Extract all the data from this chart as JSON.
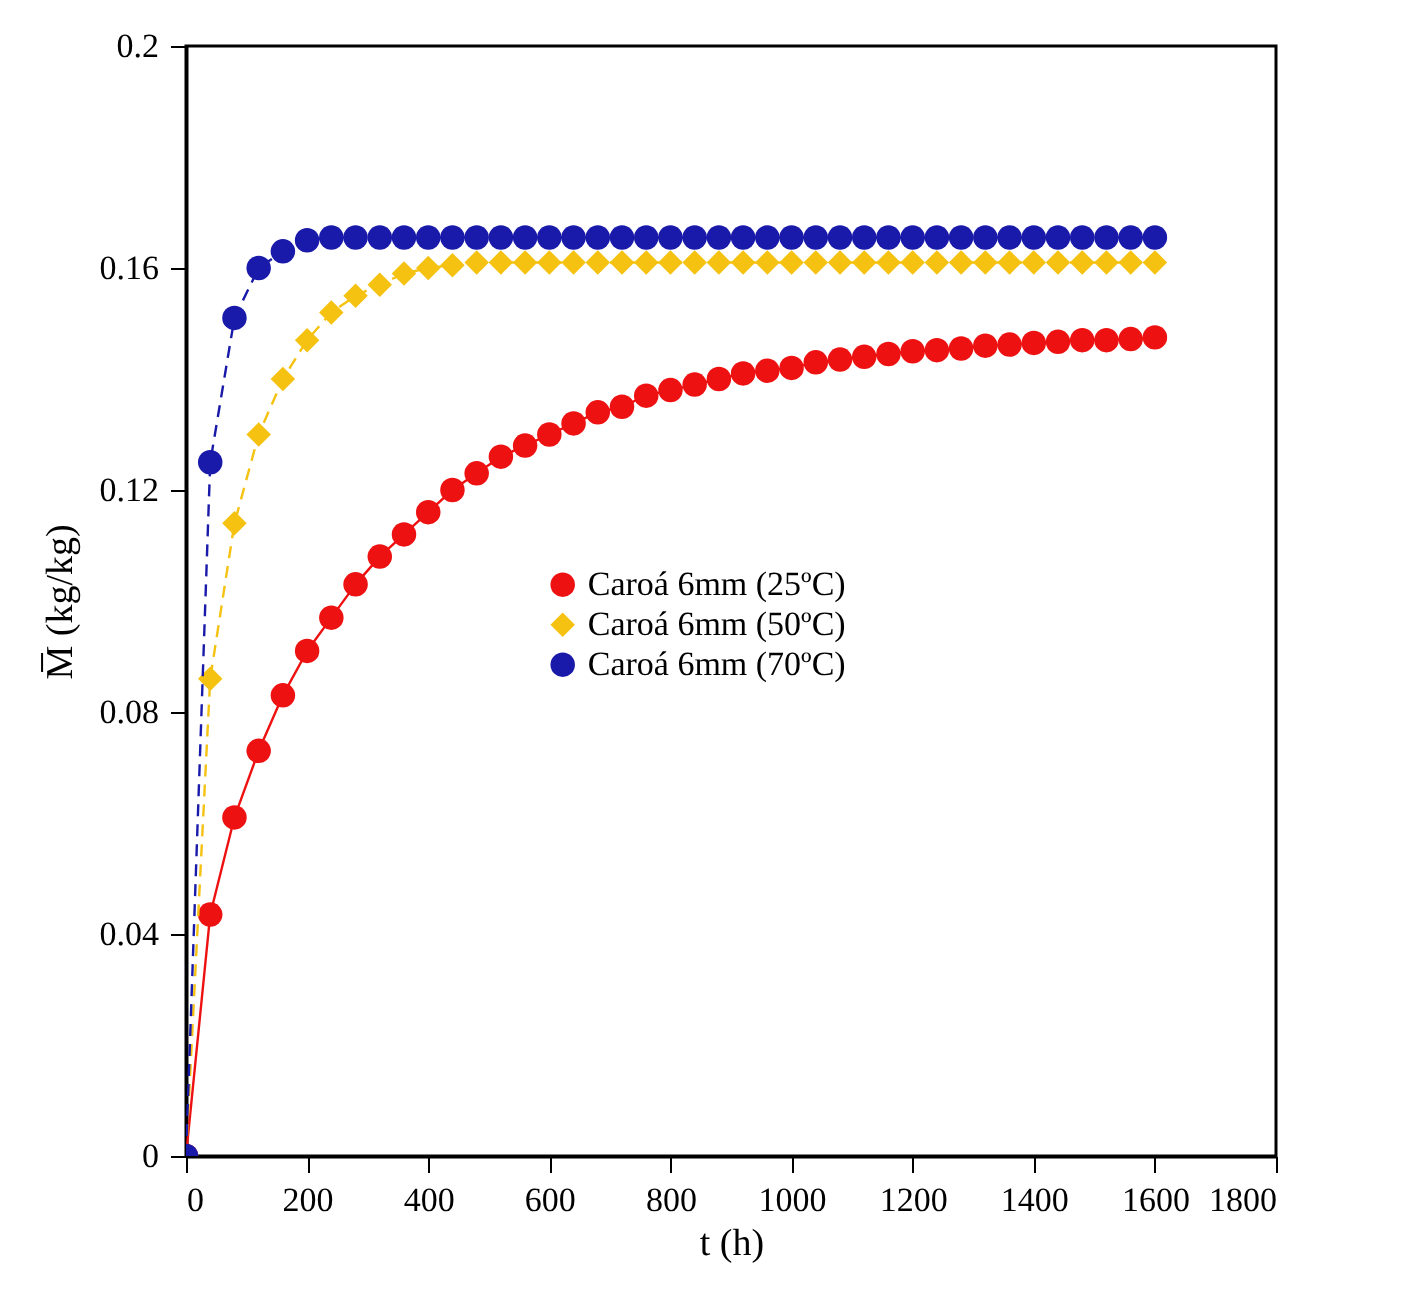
{
  "chart_data": {
    "type": "line",
    "xlabel": "t (h)",
    "ylabel": "M̅ (kg/kg)",
    "x": [
      0,
      40,
      80,
      120,
      160,
      200,
      240,
      280,
      320,
      360,
      400,
      440,
      480,
      520,
      560,
      600,
      640,
      680,
      720,
      760,
      800,
      840,
      880,
      920,
      960,
      1000,
      1040,
      1080,
      1120,
      1160,
      1200,
      1240,
      1280,
      1320,
      1360,
      1400,
      1440,
      1480,
      1520,
      1560,
      1600
    ],
    "series": [
      {
        "name": "Caroá 6mm (25ºC)",
        "color": "#ee1111",
        "marker": "circle",
        "line_style": "solid",
        "values": [
          0,
          0.0435,
          0.061,
          0.073,
          0.083,
          0.091,
          0.097,
          0.103,
          0.108,
          0.112,
          0.116,
          0.12,
          0.123,
          0.126,
          0.128,
          0.13,
          0.132,
          0.134,
          0.135,
          0.137,
          0.138,
          0.139,
          0.14,
          0.141,
          0.1415,
          0.142,
          0.143,
          0.1435,
          0.144,
          0.1445,
          0.145,
          0.1452,
          0.1455,
          0.146,
          0.1462,
          0.1465,
          0.1467,
          0.147,
          0.147,
          0.1472,
          0.1475
        ]
      },
      {
        "name": "Caroá 6mm (50ºC)",
        "color": "#f5c211",
        "marker": "diamond",
        "line_style": "dashed",
        "values": [
          0,
          0.086,
          0.114,
          0.13,
          0.14,
          0.147,
          0.152,
          0.155,
          0.157,
          0.159,
          0.16,
          0.1605,
          0.161,
          0.161,
          0.161,
          0.161,
          0.161,
          0.161,
          0.161,
          0.161,
          0.161,
          0.161,
          0.161,
          0.161,
          0.161,
          0.161,
          0.161,
          0.161,
          0.161,
          0.161,
          0.161,
          0.161,
          0.161,
          0.161,
          0.161,
          0.161,
          0.161,
          0.161,
          0.161,
          0.161,
          0.161
        ]
      },
      {
        "name": "Caroá 6mm (70ºC)",
        "color": "#1a1aaa",
        "marker": "circle",
        "line_style": "dashed",
        "values": [
          0,
          0.125,
          0.151,
          0.16,
          0.163,
          0.165,
          0.1655,
          0.1655,
          0.1655,
          0.1655,
          0.1655,
          0.1655,
          0.1655,
          0.1655,
          0.1655,
          0.1655,
          0.1655,
          0.1655,
          0.1655,
          0.1655,
          0.1655,
          0.1655,
          0.1655,
          0.1655,
          0.1655,
          0.1655,
          0.1655,
          0.1655,
          0.1655,
          0.1655,
          0.1655,
          0.1655,
          0.1655,
          0.1655,
          0.1655,
          0.1655,
          0.1655,
          0.1655,
          0.1655,
          0.1655,
          0.1655
        ]
      }
    ],
    "xlim": [
      0,
      1800
    ],
    "xticks": [
      0,
      200,
      400,
      600,
      800,
      1000,
      1200,
      1400,
      1600,
      1800
    ],
    "ylim": [
      0,
      0.2
    ],
    "yticks": [
      0,
      0.04,
      0.08,
      0.12,
      0.16,
      0.2
    ],
    "grid": false,
    "legend": "right"
  }
}
